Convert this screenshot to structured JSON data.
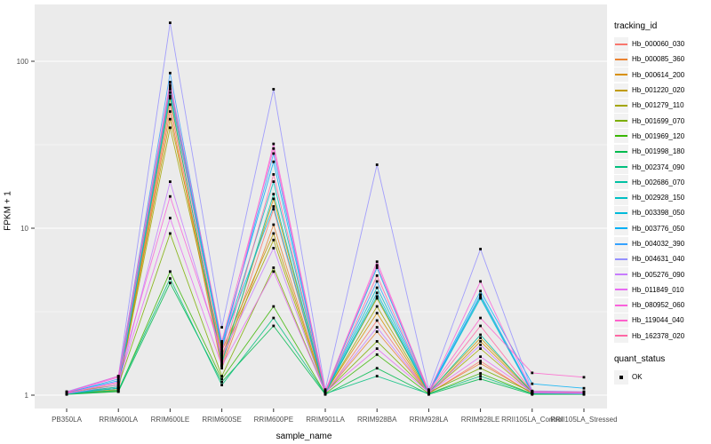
{
  "figure": {
    "x_axis_title": "sample_name",
    "y_axis_title": "FPKM + 1",
    "legend_tracking_title": "tracking_id",
    "legend_quant_title": "quant_status",
    "quant_items": [
      {
        "label": "OK"
      }
    ]
  },
  "chart_data": {
    "type": "line",
    "title": "",
    "xlabel": "sample_name",
    "ylabel": "FPKM + 1",
    "y_scale": "log10",
    "y_ticks": [
      1,
      10,
      100
    ],
    "y_tick_labels": [
      "1",
      "10",
      "100"
    ],
    "ylim": [
      1,
      219
    ],
    "grid": true,
    "legend_position": "right",
    "panel_bg": "#EBEBEB",
    "grid_color": "#FFFFFF",
    "point_color": "#000000",
    "tick_label_color": "#4D4D4D",
    "categories": [
      "PB350LA",
      "RRIM600LA",
      "RRIM600LE",
      "RRIM600SE",
      "RRIM600PE",
      "RRIM901LA",
      "RRIM928BA",
      "RRIM928LA",
      "RRIM928LE",
      "RRII105LA_Control",
      "RRII105LA_Stressed"
    ],
    "series": [
      {
        "name": "Hb_000060_030",
        "color": "#F8766D",
        "values": [
          1.02,
          1.05,
          55,
          1.5,
          13,
          1.02,
          2.8,
          1.02,
          1.6,
          1.02,
          1.02
        ]
      },
      {
        "name": "Hb_000085_360",
        "color": "#EA8331",
        "values": [
          1.03,
          1.1,
          50,
          1.45,
          10.5,
          1.03,
          2.4,
          1.03,
          1.55,
          1.03,
          1.02
        ]
      },
      {
        "name": "Hb_000614_200",
        "color": "#D89000",
        "values": [
          1.02,
          1.08,
          60,
          1.6,
          15,
          1.04,
          3.1,
          1.02,
          2.1,
          1.04,
          1.03
        ]
      },
      {
        "name": "Hb_001220_020",
        "color": "#C09B00",
        "values": [
          1.03,
          1.12,
          45,
          1.85,
          9.3,
          1.05,
          3.8,
          1.04,
          2.2,
          1.05,
          1.04
        ]
      },
      {
        "name": "Hb_001279_110",
        "color": "#A3A500",
        "values": [
          1.02,
          1.1,
          40,
          1.75,
          8.5,
          1.03,
          3.4,
          1.03,
          1.9,
          1.03,
          1.02
        ]
      },
      {
        "name": "Hb_001699_070",
        "color": "#7CAE00",
        "values": [
          1.04,
          1.15,
          9.3,
          1.3,
          5.8,
          1.04,
          2.1,
          1.04,
          1.45,
          1.04,
          1.03
        ]
      },
      {
        "name": "Hb_001969_120",
        "color": "#39B600",
        "values": [
          1.02,
          1.06,
          5.5,
          1.25,
          3.4,
          1.02,
          1.75,
          1.02,
          1.35,
          1.02,
          1.02
        ]
      },
      {
        "name": "Hb_001998_180",
        "color": "#00BB4E",
        "values": [
          1.01,
          1.05,
          4.7,
          1.2,
          2.6,
          1.01,
          1.45,
          1.01,
          1.25,
          1.01,
          1.01
        ]
      },
      {
        "name": "Hb_002374_090",
        "color": "#00BF7D",
        "values": [
          1.02,
          1.07,
          5.0,
          1.15,
          2.9,
          1.02,
          1.3,
          1.02,
          1.3,
          1.02,
          1.02
        ]
      },
      {
        "name": "Hb_002686_070",
        "color": "#00C1A3",
        "values": [
          1.03,
          1.1,
          62,
          1.55,
          16,
          1.03,
          3.9,
          1.03,
          2.3,
          1.03,
          1.03
        ]
      },
      {
        "name": "Hb_002928_150",
        "color": "#00BFC4",
        "values": [
          1.03,
          1.12,
          65,
          1.9,
          19,
          1.04,
          4.4,
          1.04,
          3.9,
          1.04,
          1.03
        ]
      },
      {
        "name": "Hb_003398_050",
        "color": "#00BBDA",
        "values": [
          1.02,
          1.1,
          68,
          2.0,
          13.5,
          1.03,
          4.1,
          1.03,
          3.8,
          1.03,
          1.02
        ]
      },
      {
        "name": "Hb_003776_050",
        "color": "#00B0F6",
        "values": [
          1.04,
          1.22,
          72,
          2.05,
          25,
          1.05,
          5.8,
          1.05,
          4.2,
          1.17,
          1.1
        ]
      },
      {
        "name": "Hb_004032_390",
        "color": "#35A2FF",
        "values": [
          1.03,
          1.25,
          85,
          1.95,
          28,
          1.04,
          4.8,
          1.04,
          4.0,
          1.05,
          1.04
        ]
      },
      {
        "name": "Hb_004631_040",
        "color": "#9590FF",
        "values": [
          1.05,
          1.3,
          170,
          2.55,
          68,
          1.08,
          24,
          1.08,
          7.5,
          1.06,
          1.05
        ]
      },
      {
        "name": "Hb_005276_090",
        "color": "#C77CFF",
        "values": [
          1.02,
          1.15,
          19,
          1.7,
          7.6,
          1.03,
          2.55,
          1.03,
          2.0,
          1.03,
          1.02
        ]
      },
      {
        "name": "Hb_011849_010",
        "color": "#E76BF3",
        "values": [
          1.03,
          1.2,
          11.5,
          1.5,
          5.5,
          1.04,
          1.9,
          1.04,
          1.7,
          1.04,
          1.03
        ]
      },
      {
        "name": "Hb_080952_060",
        "color": "#FA62DB",
        "values": [
          1.04,
          1.28,
          15.5,
          1.8,
          32,
          1.05,
          6.3,
          1.05,
          4.8,
          1.05,
          1.04
        ]
      },
      {
        "name": "Hb_119044_040",
        "color": "#FF61CC",
        "values": [
          1.04,
          1.3,
          75,
          2.1,
          30,
          1.06,
          6.0,
          1.06,
          2.9,
          1.36,
          1.28
        ]
      },
      {
        "name": "Hb_162378_020",
        "color": "#FF67A4",
        "values": [
          1.03,
          1.18,
          70,
          1.65,
          21,
          1.04,
          5.2,
          1.04,
          2.6,
          1.05,
          1.04
        ]
      }
    ]
  }
}
